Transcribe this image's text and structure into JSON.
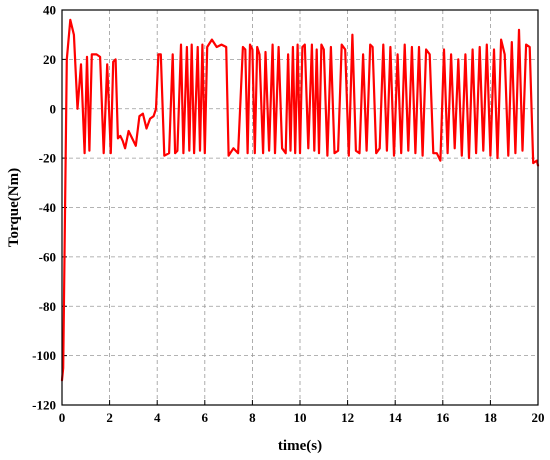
{
  "chart_data": {
    "type": "line",
    "title": "",
    "xlabel": "time(s)",
    "ylabel": "Torque(Nm)",
    "xlim": [
      0,
      20
    ],
    "ylim": [
      -120,
      40
    ],
    "xticks": [
      0,
      2,
      4,
      6,
      8,
      10,
      12,
      14,
      16,
      18,
      20
    ],
    "yticks": [
      40,
      20,
      0,
      -20,
      -40,
      -60,
      -80,
      -100,
      -120
    ],
    "grid": true,
    "legend": "none",
    "series": [
      {
        "color": "#ff0000",
        "x": [
          0,
          0.05,
          0.2,
          0.35,
          0.5,
          0.65,
          0.8,
          0.95,
          1.05,
          1.15,
          1.25,
          1.45,
          1.6,
          1.75,
          1.9,
          2.05,
          2.15,
          2.25,
          2.35,
          2.45,
          2.55,
          2.65,
          2.8,
          2.95,
          3.1,
          3.25,
          3.4,
          3.55,
          3.7,
          3.85,
          3.95,
          4.05,
          4.15,
          4.3,
          4.5,
          4.65,
          4.75,
          4.85,
          5.0,
          5.1,
          5.25,
          5.35,
          5.45,
          5.55,
          5.7,
          5.8,
          5.9,
          6.0,
          6.1,
          6.3,
          6.5,
          6.7,
          6.9,
          7.0,
          7.2,
          7.4,
          7.6,
          7.7,
          7.8,
          7.9,
          8.0,
          8.1,
          8.2,
          8.3,
          8.45,
          8.55,
          8.7,
          8.85,
          8.95,
          9.1,
          9.25,
          9.4,
          9.5,
          9.6,
          9.7,
          9.8,
          9.9,
          10.0,
          10.1,
          10.2,
          10.35,
          10.5,
          10.6,
          10.7,
          10.8,
          10.9,
          11.0,
          11.15,
          11.3,
          11.45,
          11.6,
          11.75,
          11.9,
          12.05,
          12.2,
          12.35,
          12.5,
          12.65,
          12.8,
          12.95,
          13.05,
          13.2,
          13.35,
          13.5,
          13.65,
          13.8,
          13.95,
          14.1,
          14.25,
          14.4,
          14.55,
          14.7,
          14.85,
          15.0,
          15.15,
          15.3,
          15.45,
          15.6,
          15.75,
          15.9,
          16.05,
          16.2,
          16.35,
          16.5,
          16.65,
          16.8,
          16.95,
          17.1,
          17.25,
          17.4,
          17.55,
          17.7,
          17.85,
          18.0,
          18.15,
          18.3,
          18.45,
          18.6,
          18.75,
          18.9,
          19.05,
          19.2,
          19.35,
          19.5,
          19.65,
          19.8,
          19.95,
          20.0
        ],
        "values": [
          -110,
          -105,
          20,
          36,
          30,
          0,
          18,
          -18,
          21,
          -17,
          22,
          22,
          21,
          -18,
          18,
          -18,
          19,
          20,
          -12,
          -11,
          -13,
          -16,
          -9,
          -12,
          -15,
          -3,
          -2,
          -8,
          -4,
          -3,
          0,
          22,
          22,
          -19,
          -18,
          22,
          -18,
          -17,
          26,
          -18,
          25,
          -17,
          26,
          -18,
          25,
          -17,
          26,
          -18,
          25,
          28,
          25,
          26,
          25,
          -19,
          -16,
          -18,
          25,
          24,
          -18,
          26,
          24,
          -18,
          25,
          22,
          -18,
          23,
          -17,
          26,
          -18,
          25,
          -16,
          -18,
          22,
          -17,
          25,
          -18,
          26,
          -18,
          25,
          26,
          -16,
          26,
          -17,
          24,
          -18,
          26,
          24,
          -19,
          25,
          -18,
          -17,
          26,
          24,
          -19,
          30,
          -17,
          -18,
          22,
          -17,
          26,
          25,
          -18,
          -16,
          26,
          -17,
          25,
          -19,
          22,
          -18,
          26,
          -17,
          25,
          -18,
          25,
          -19,
          24,
          22,
          -18,
          -18,
          -21,
          24,
          -18,
          22,
          -16,
          20,
          -19,
          22,
          -20,
          24,
          -18,
          25,
          -17,
          26,
          -19,
          24,
          -20,
          28,
          22,
          -19,
          27,
          -18,
          32,
          -17,
          26,
          25,
          -22,
          -21,
          -23
        ]
      }
    ]
  }
}
